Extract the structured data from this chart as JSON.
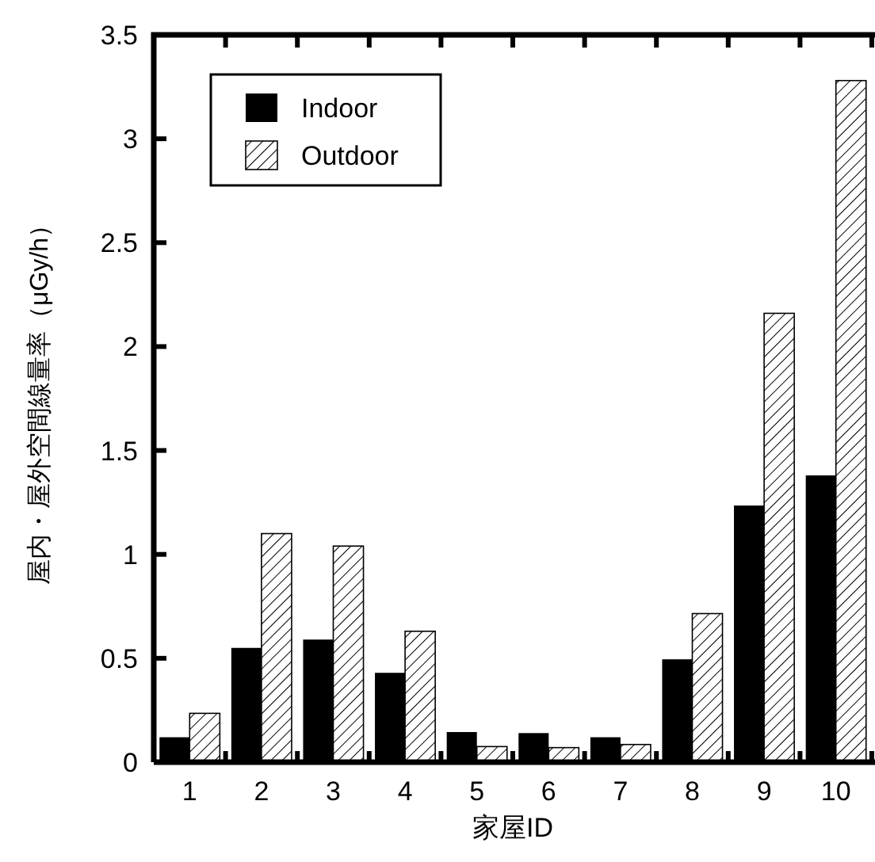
{
  "chart_data": {
    "type": "bar",
    "xlabel": "家屋ID",
    "ylabel": "屋内・屋外空間線量率（μGy/h）",
    "categories": [
      "1",
      "2",
      "3",
      "4",
      "5",
      "6",
      "7",
      "8",
      "9",
      "10"
    ],
    "series": [
      {
        "name": "Indoor",
        "color": "#000000",
        "values": [
          0.12,
          0.55,
          0.59,
          0.43,
          0.145,
          0.14,
          0.12,
          0.495,
          1.235,
          1.38
        ]
      },
      {
        "name": "Outdoor",
        "color": "#ffffff",
        "values": [
          0.235,
          1.1,
          1.04,
          0.63,
          0.075,
          0.07,
          0.085,
          0.715,
          2.16,
          3.28
        ]
      }
    ],
    "ylim": [
      0,
      3.5
    ],
    "yticks": [
      0,
      0.5,
      1,
      1.5,
      2,
      2.5,
      3,
      3.5
    ],
    "grid": false,
    "legend": "top left"
  }
}
